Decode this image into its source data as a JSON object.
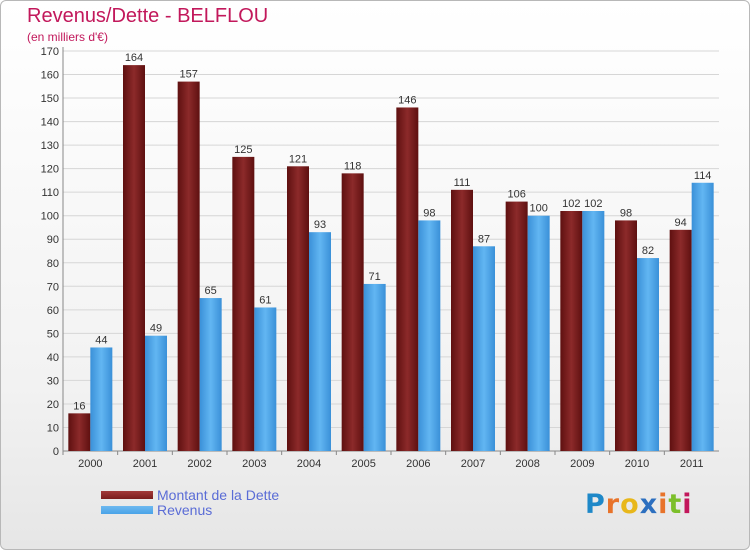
{
  "header": {
    "title": "Revenus/Dette - BELFLOU",
    "subtitle": "(en milliers d'€)"
  },
  "chart_data": {
    "type": "bar",
    "categories": [
      "2000",
      "2001",
      "2002",
      "2003",
      "2004",
      "2005",
      "2006",
      "2007",
      "2008",
      "2009",
      "2010",
      "2011"
    ],
    "series": [
      {
        "name": "Montant de la Dette",
        "values": [
          16,
          164,
          157,
          125,
          121,
          118,
          146,
          111,
          106,
          102,
          98,
          94
        ],
        "color": "#7a1c1c"
      },
      {
        "name": "Revenus",
        "values": [
          44,
          49,
          65,
          61,
          93,
          71,
          98,
          87,
          100,
          102,
          82,
          114
        ],
        "color": "#4aa3e8"
      }
    ],
    "ylim": [
      0,
      170
    ],
    "ytick_step": 10,
    "grid": true,
    "legend": "bottom-left"
  },
  "logo": {
    "letters": [
      {
        "ch": "P",
        "color": "#1e88c8"
      },
      {
        "ch": "r",
        "color": "#e8732a"
      },
      {
        "ch": "o",
        "color": "#e8b71a"
      },
      {
        "ch": "x",
        "color": "#2c6fbf"
      },
      {
        "ch": "i",
        "color": "#e8732a"
      },
      {
        "ch": "t",
        "color": "#7cbf2a"
      },
      {
        "ch": "i",
        "color": "#c2185b"
      }
    ]
  }
}
